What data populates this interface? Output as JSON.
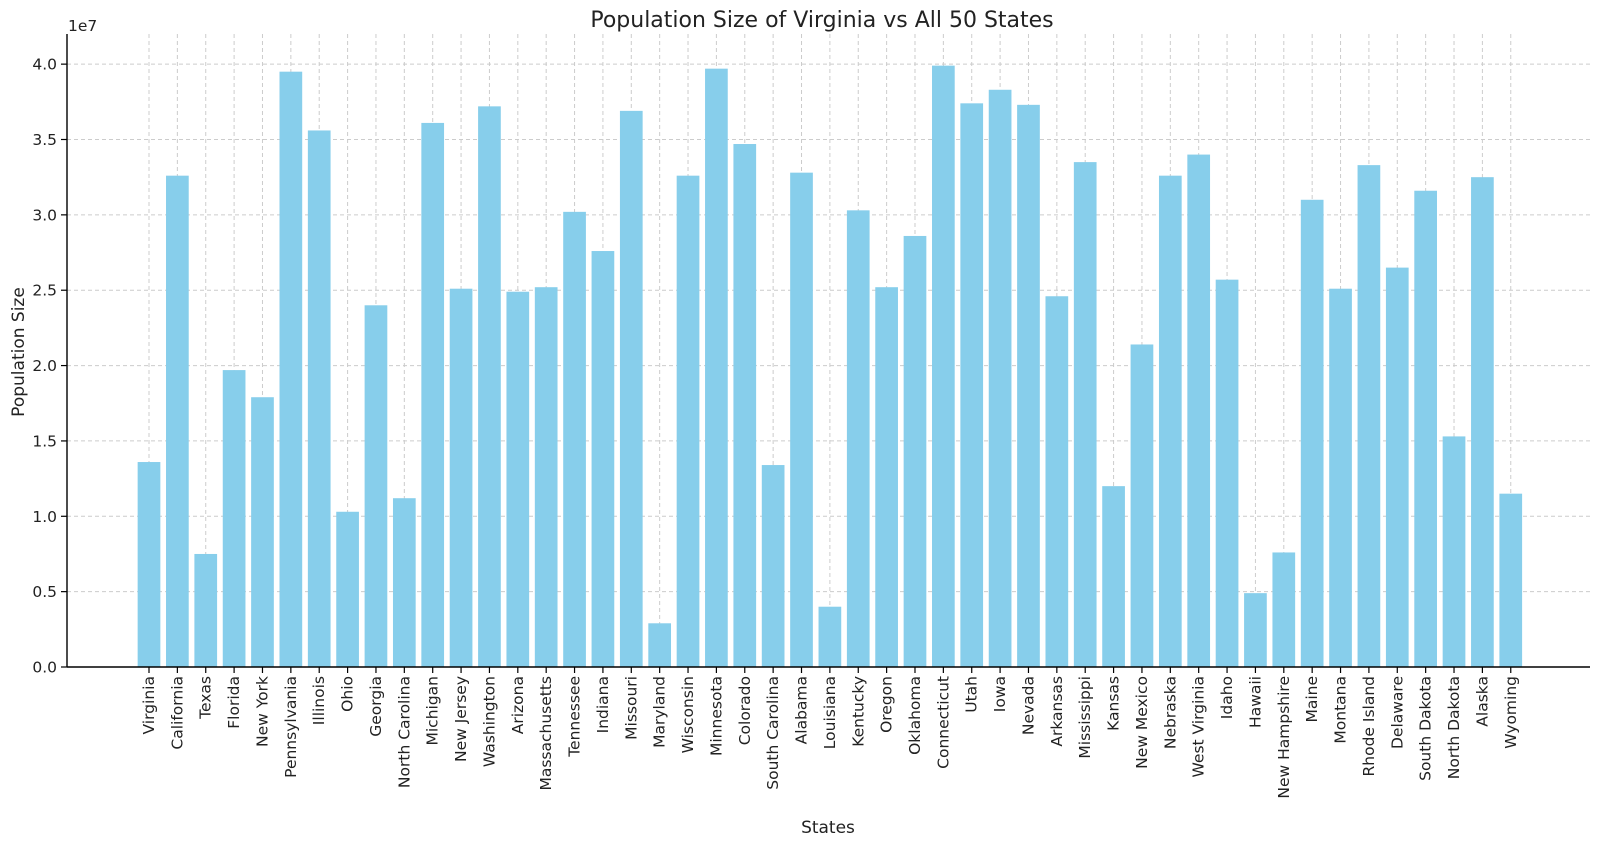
{
  "chart_data": {
    "type": "bar",
    "title": "Population Size of Virginia vs All 50 States",
    "xlabel": "States",
    "ylabel": "Population Size",
    "y_offset_label": "1e7",
    "ylim": [
      0,
      42000000
    ],
    "y_ticks": [
      0,
      5000000,
      10000000,
      15000000,
      20000000,
      25000000,
      30000000,
      35000000,
      40000000
    ],
    "y_tick_labels": [
      "0.0",
      "0.5",
      "1.0",
      "1.5",
      "2.0",
      "2.5",
      "3.0",
      "3.5",
      "4.0"
    ],
    "grid": true,
    "bar_color": "#87CEEB",
    "categories": [
      "Virginia",
      "California",
      "Texas",
      "Florida",
      "New York",
      "Pennsylvania",
      "Illinois",
      "Ohio",
      "Georgia",
      "North Carolina",
      "Michigan",
      "New Jersey",
      "Washington",
      "Arizona",
      "Massachusetts",
      "Tennessee",
      "Indiana",
      "Missouri",
      "Maryland",
      "Wisconsin",
      "Minnesota",
      "Colorado",
      "South Carolina",
      "Alabama",
      "Louisiana",
      "Kentucky",
      "Oregon",
      "Oklahoma",
      "Connecticut",
      "Utah",
      "Iowa",
      "Nevada",
      "Arkansas",
      "Mississippi",
      "Kansas",
      "New Mexico",
      "Nebraska",
      "West Virginia",
      "Idaho",
      "Hawaii",
      "New Hampshire",
      "Maine",
      "Montana",
      "Rhode Island",
      "Delaware",
      "South Dakota",
      "North Dakota",
      "Alaska",
      "Wyoming"
    ],
    "values": [
      13600000,
      32600000,
      7500000,
      19700000,
      17900000,
      39500000,
      35600000,
      10300000,
      24000000,
      11200000,
      36100000,
      25100000,
      37200000,
      24900000,
      25200000,
      30200000,
      27600000,
      36900000,
      2900000,
      32600000,
      39700000,
      34700000,
      13400000,
      32800000,
      4000000,
      30300000,
      25200000,
      28600000,
      39900000,
      37400000,
      38300000,
      37300000,
      24600000,
      33500000,
      12000000,
      21400000,
      32600000,
      34000000,
      25700000,
      4900000,
      7600000,
      31000000,
      25100000,
      33300000,
      26500000,
      31600000,
      15300000,
      32500000,
      11500000
    ]
  }
}
